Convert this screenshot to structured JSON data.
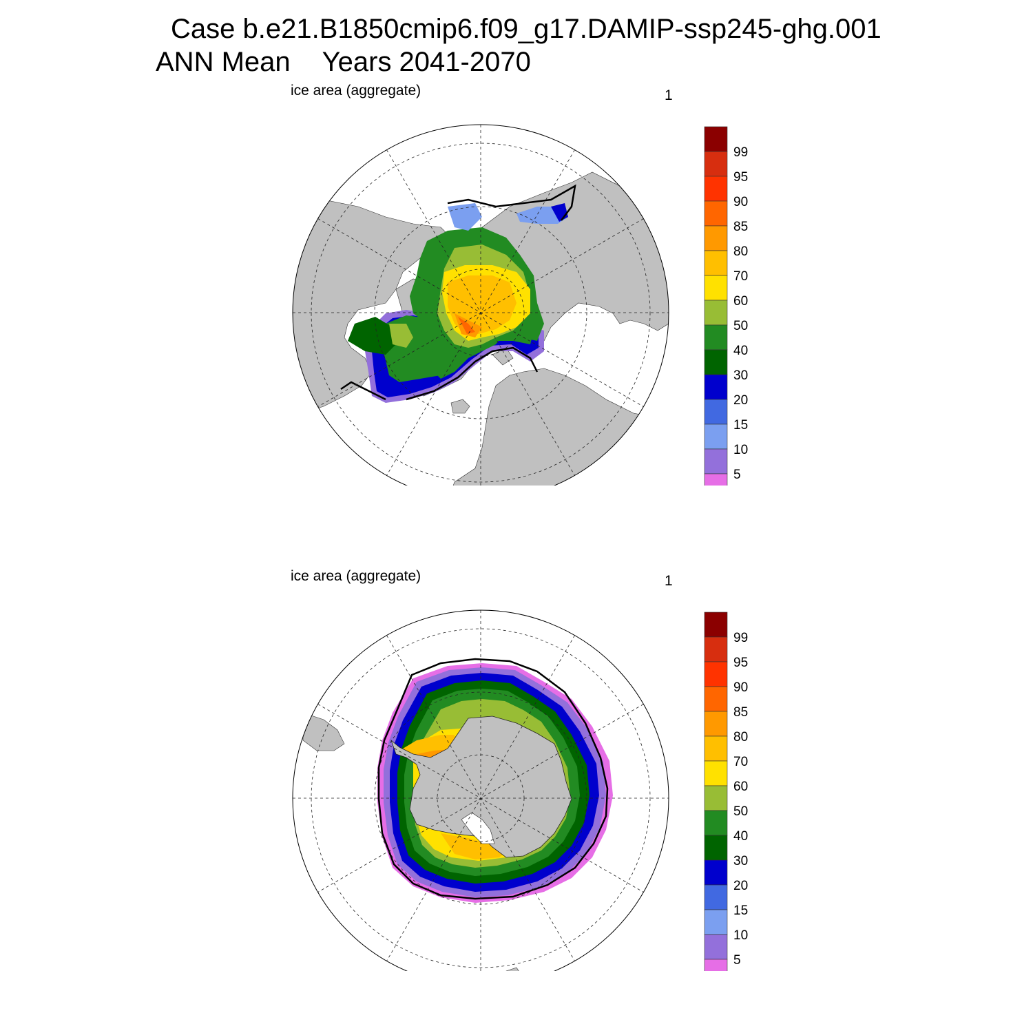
{
  "header": {
    "line1": "Case b.e21.B1850cmip6.f09_g17.DAMIP-ssp245-ghg.001",
    "line2_left": "ANN Mean",
    "line2_right": "Years 2041-2070"
  },
  "panels": [
    {
      "id": "north",
      "title": "ice area  (aggregate)",
      "corner_label": "1",
      "hemisphere": "Arctic"
    },
    {
      "id": "south",
      "title": "ice area  (aggregate)",
      "corner_label": "1",
      "hemisphere": "Antarctic"
    }
  ],
  "colorbar": {
    "labels": [
      "99",
      "95",
      "90",
      "85",
      "80",
      "70",
      "60",
      "50",
      "40",
      "30",
      "20",
      "15",
      "10",
      "5"
    ],
    "colors": [
      "#8b0000",
      "#d72e0f",
      "#ff3300",
      "#ff6600",
      "#ff9900",
      "#ffbf00",
      "#ffe100",
      "#98bd35",
      "#228b22",
      "#006400",
      "#0000cd",
      "#4169e1",
      "#7b9ff0",
      "#9370db",
      "#e66ee6"
    ]
  },
  "colors": {
    "land": "#c0c0c0",
    "ocean": "#ffffff",
    "ice_edge": "#000000"
  }
}
